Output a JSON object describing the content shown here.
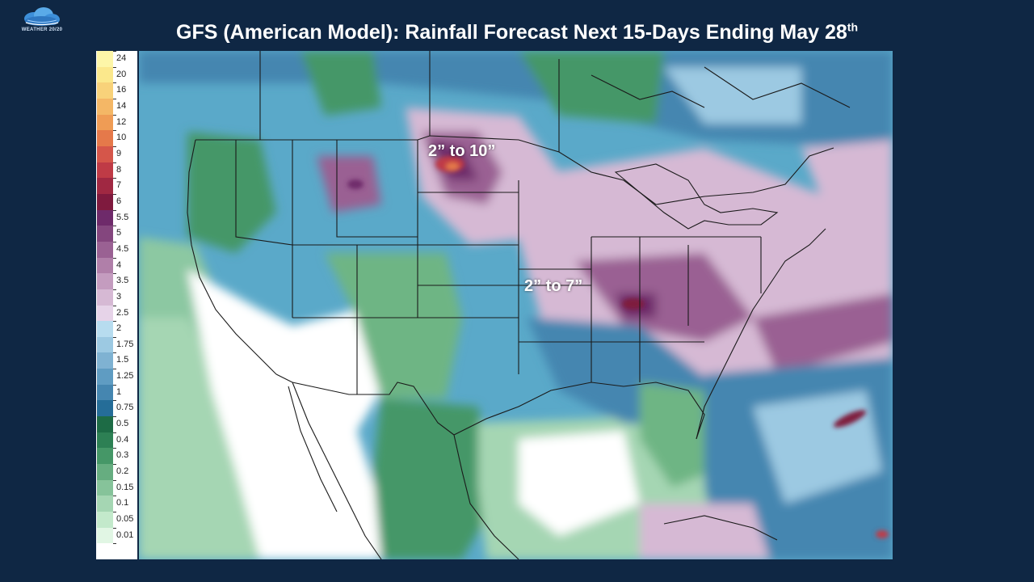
{
  "brand": {
    "logo_text": "WEATHER 20/20",
    "logo_icon": "cloud-icon"
  },
  "title": {
    "text": "GFS (American Model): Rainfall Forecast Next 15-Days Ending May 28",
    "superscript": "th"
  },
  "legend": {
    "entries": [
      {
        "label": "24",
        "color": "#fdf6a8"
      },
      {
        "label": "20",
        "color": "#fbe88c"
      },
      {
        "label": "16",
        "color": "#f8d27a"
      },
      {
        "label": "14",
        "color": "#f4b766"
      },
      {
        "label": "12",
        "color": "#ef9c55"
      },
      {
        "label": "10",
        "color": "#e5794a"
      },
      {
        "label": "9",
        "color": "#d5564a"
      },
      {
        "label": "8",
        "color": "#bf3b46"
      },
      {
        "label": "7",
        "color": "#a02842"
      },
      {
        "label": "6",
        "color": "#7f1a3e"
      },
      {
        "label": "5.5",
        "color": "#6e2a6a"
      },
      {
        "label": "5",
        "color": "#84467e"
      },
      {
        "label": "4.5",
        "color": "#9a6193"
      },
      {
        "label": "4",
        "color": "#b07fa9"
      },
      {
        "label": "3.5",
        "color": "#c49cbf"
      },
      {
        "label": "3",
        "color": "#d6b9d4"
      },
      {
        "label": "2.5",
        "color": "#e6d3e8"
      },
      {
        "label": "2",
        "color": "#b7dcef"
      },
      {
        "label": "1.75",
        "color": "#9cc9e2"
      },
      {
        "label": "1.5",
        "color": "#7fb2d2"
      },
      {
        "label": "1.25",
        "color": "#5f9cc2"
      },
      {
        "label": "1",
        "color": "#4586b0"
      },
      {
        "label": "0.75",
        "color": "#256d98"
      },
      {
        "label": "0.5",
        "color": "#1d6b45"
      },
      {
        "label": "0.4",
        "color": "#2d8054"
      },
      {
        "label": "0.3",
        "color": "#459767"
      },
      {
        "label": "0.2",
        "color": "#66ad80"
      },
      {
        "label": "0.15",
        "color": "#86c39a"
      },
      {
        "label": "0.1",
        "color": "#a5d6b3"
      },
      {
        "label": "0.05",
        "color": "#c3e9cb"
      },
      {
        "label": "0.01",
        "color": "#e1f6e4"
      },
      {
        "label": "",
        "color": "#ffffff"
      }
    ]
  },
  "map": {
    "region": "North America",
    "colors": {
      "ocean_mid": "#5aa9c9",
      "dry": "#ffffff",
      "light_green": "#a5d6b3",
      "green": "#459767",
      "blue": "#4586b0",
      "light_blue": "#9cc9e2",
      "pink": "#d6b9d4",
      "purple": "#9a6193",
      "dark_purple": "#6e2a6a",
      "red": "#bf3b46",
      "orange": "#e5794a"
    },
    "annotations": [
      {
        "id": "north-plains",
        "text": "2” to 10”"
      },
      {
        "id": "ohio-valley",
        "text": "2” to 7”"
      }
    ]
  }
}
